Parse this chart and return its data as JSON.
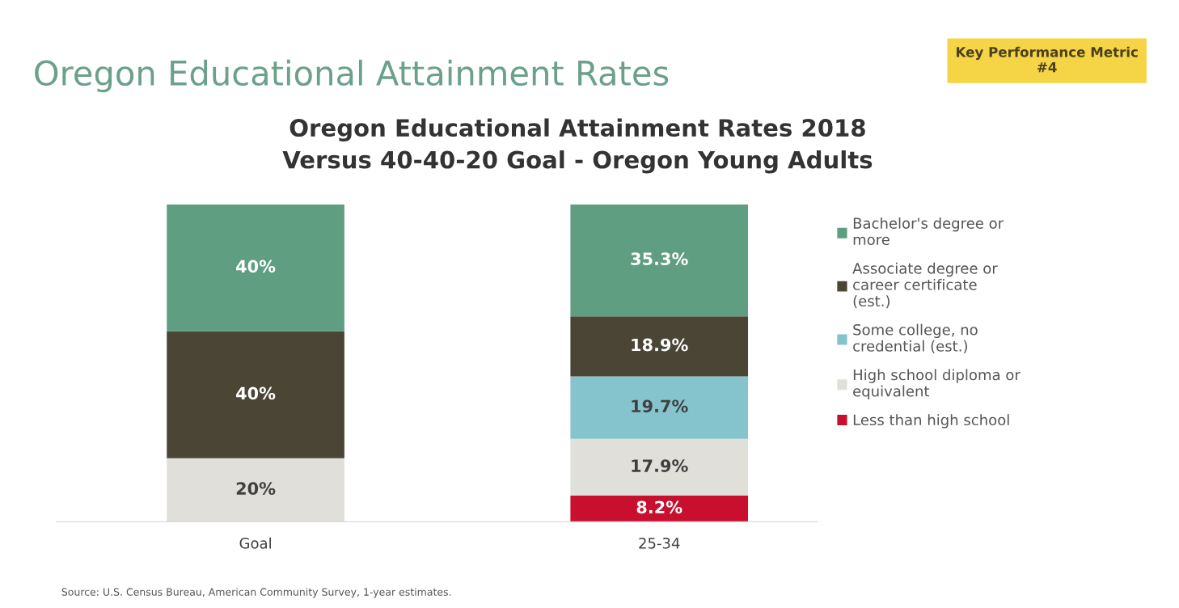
{
  "chart_data": {
    "type": "bar",
    "stacked": true,
    "title": "Oregon Educational Attainment Rates",
    "subtitle": "Oregon Educational Attainment Rates 2018\nVersus 40-40-20 Goal - Oregon Young Adults",
    "categories": [
      "Goal",
      "25-34"
    ],
    "series": [
      {
        "name": "Less than high school",
        "color": "#c8102e",
        "values": [
          null,
          8.2
        ],
        "value_labels": [
          null,
          "8.2%"
        ]
      },
      {
        "name": "High school diploma or equivalent",
        "color": "#e0dfda",
        "values": [
          20,
          17.9
        ],
        "value_labels": [
          "20%",
          "17.9%"
        ]
      },
      {
        "name": "Some college, no credential (est.)",
        "color": "#85c4cc",
        "values": [
          null,
          19.7
        ],
        "value_labels": [
          null,
          "19.7%"
        ]
      },
      {
        "name": "Associate degree or career certificate (est.)",
        "color": "#4a4535",
        "values": [
          40,
          18.9
        ],
        "value_labels": [
          "40%",
          "18.9%"
        ]
      },
      {
        "name": "Bachelor's degree or more",
        "color": "#5f9e80",
        "values": [
          40,
          35.3
        ],
        "value_labels": [
          "40%",
          "35.3%"
        ]
      }
    ],
    "legend": "right",
    "annotations": [
      "Key Performance Metric\n#4",
      "Source: U.S. Census Bureau, American Community Survey, 1-year estimates."
    ]
  }
}
